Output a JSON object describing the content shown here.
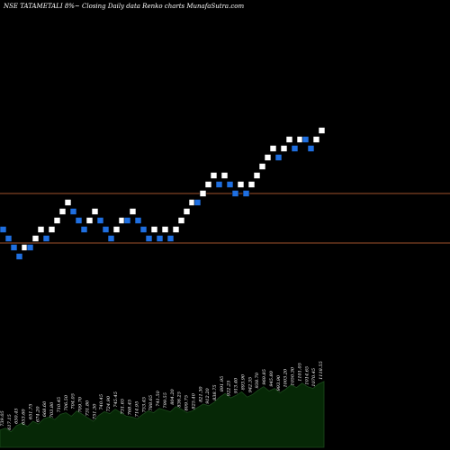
{
  "header": {
    "title": "NSE TATAMETALI 8%~  Closing Daily data  Renko  charts MunafaSutra.com"
  },
  "colors": {
    "background": "#000000",
    "up_brick": "#ffffff",
    "down_brick": "#1f6fe0",
    "level_line": "#a0522d",
    "volume_area": "#062806",
    "volume_line": "#1c4a1c"
  },
  "chart_data": {
    "type": "renko",
    "title": "NSE TATAMETALI 8%~  Closing Daily data  Renko  charts MunafaSutra.com",
    "price_range": [
      0,
      100
    ],
    "reference_levels": [
      57,
      46
    ],
    "bricks": [
      {
        "dir": "down",
        "level": 49
      },
      {
        "dir": "down",
        "level": 47
      },
      {
        "dir": "down",
        "level": 45
      },
      {
        "dir": "down",
        "level": 43
      },
      {
        "dir": "up",
        "level": 45
      },
      {
        "dir": "down",
        "level": 45
      },
      {
        "dir": "up",
        "level": 47
      },
      {
        "dir": "up",
        "level": 49
      },
      {
        "dir": "down",
        "level": 47
      },
      {
        "dir": "up",
        "level": 49
      },
      {
        "dir": "up",
        "level": 51
      },
      {
        "dir": "up",
        "level": 53
      },
      {
        "dir": "up",
        "level": 55
      },
      {
        "dir": "down",
        "level": 53
      },
      {
        "dir": "down",
        "level": 51
      },
      {
        "dir": "down",
        "level": 49
      },
      {
        "dir": "up",
        "level": 51
      },
      {
        "dir": "up",
        "level": 53
      },
      {
        "dir": "down",
        "level": 51
      },
      {
        "dir": "down",
        "level": 49
      },
      {
        "dir": "down",
        "level": 47
      },
      {
        "dir": "up",
        "level": 49
      },
      {
        "dir": "up",
        "level": 51
      },
      {
        "dir": "down",
        "level": 51
      },
      {
        "dir": "up",
        "level": 53
      },
      {
        "dir": "down",
        "level": 51
      },
      {
        "dir": "down",
        "level": 49
      },
      {
        "dir": "down",
        "level": 47
      },
      {
        "dir": "up",
        "level": 49
      },
      {
        "dir": "down",
        "level": 47
      },
      {
        "dir": "up",
        "level": 49
      },
      {
        "dir": "down",
        "level": 47
      },
      {
        "dir": "up",
        "level": 49
      },
      {
        "dir": "up",
        "level": 51
      },
      {
        "dir": "up",
        "level": 53
      },
      {
        "dir": "up",
        "level": 55
      },
      {
        "dir": "down",
        "level": 55
      },
      {
        "dir": "up",
        "level": 57
      },
      {
        "dir": "up",
        "level": 59
      },
      {
        "dir": "up",
        "level": 61
      },
      {
        "dir": "down",
        "level": 59
      },
      {
        "dir": "up",
        "level": 61
      },
      {
        "dir": "down",
        "level": 59
      },
      {
        "dir": "down",
        "level": 57
      },
      {
        "dir": "up",
        "level": 59
      },
      {
        "dir": "down",
        "level": 57
      },
      {
        "dir": "up",
        "level": 59
      },
      {
        "dir": "up",
        "level": 61
      },
      {
        "dir": "up",
        "level": 63
      },
      {
        "dir": "up",
        "level": 65
      },
      {
        "dir": "up",
        "level": 67
      },
      {
        "dir": "down",
        "level": 65
      },
      {
        "dir": "up",
        "level": 67
      },
      {
        "dir": "up",
        "level": 69
      },
      {
        "dir": "down",
        "level": 67
      },
      {
        "dir": "up",
        "level": 69
      },
      {
        "dir": "down",
        "level": 69
      },
      {
        "dir": "down",
        "level": 67
      },
      {
        "dir": "up",
        "level": 69
      },
      {
        "dir": "up",
        "level": 71
      }
    ],
    "volume_profile": [
      20,
      22,
      18,
      25,
      28,
      24,
      30,
      27,
      33,
      35,
      32,
      38,
      40,
      36,
      42,
      38,
      34,
      30,
      37,
      41,
      39,
      44,
      40,
      36,
      35,
      33,
      38,
      42,
      40,
      45,
      43,
      41,
      47,
      44,
      40,
      42,
      46,
      50,
      48,
      52,
      58,
      62,
      57,
      60,
      64,
      58,
      61,
      66,
      70,
      65,
      68,
      63,
      67,
      72,
      69,
      74,
      70,
      68,
      73,
      76
    ],
    "volume_labels": [
      "739.05",
      "617.15",
      "650.45",
      "653.60",
      "651.75",
      "674.20",
      "668.60",
      "703.80",
      "710.45",
      "706.50",
      "704.05",
      "709.70",
      "731.80",
      "751.30",
      "740.45",
      "724.90",
      "745.45",
      "731.65",
      "768.45",
      "714.95",
      "753.45",
      "788.65",
      "741.50",
      "799.55",
      "804.20",
      "836.25",
      "809.75",
      "825.40",
      "821.30",
      "912.20",
      "838.75",
      "891.95",
      "922.25",
      "913.40",
      "893.90",
      "942.35",
      "938.70",
      "969.85",
      "945.80",
      "993.90",
      "1003.20",
      "1050.30",
      "1101.05",
      "1014.65",
      "1070.45",
      "1118.55"
    ]
  }
}
